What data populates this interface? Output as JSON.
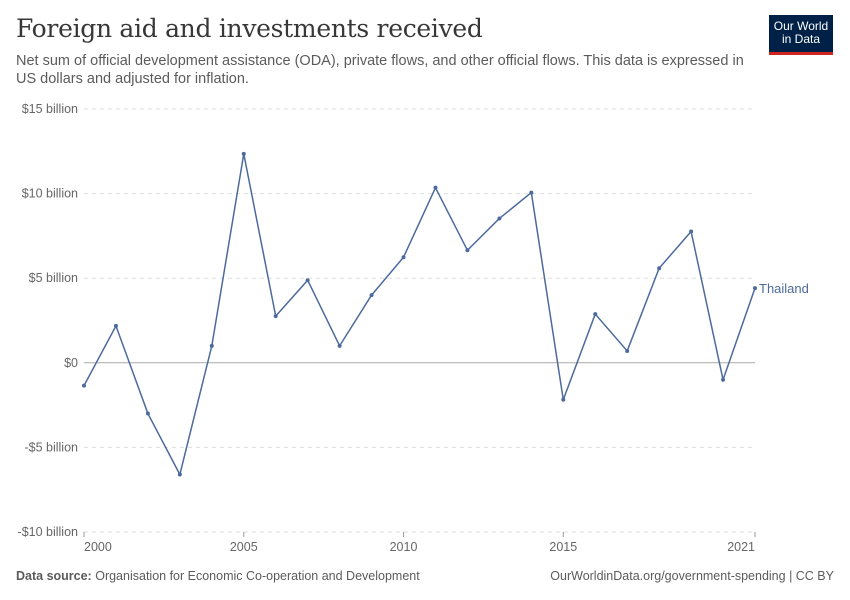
{
  "header": {
    "title": "Foreign aid and investments received",
    "subtitle": "Net sum of official development assistance (ODA), private flows, and other official flows. This data is expressed in US dollars and adjusted for inflation."
  },
  "logo": {
    "text": "Our World in Data",
    "line1": "Our World",
    "line2": "in Data",
    "bg": "#002147",
    "accent": "#ce261e"
  },
  "footer": {
    "source_label": "Data source:",
    "source": "Organisation for Economic Co-operation and Development",
    "url": "OurWorldinData.org/government-spending | CC BY"
  },
  "chart_data": {
    "type": "line",
    "title": "Foreign aid and investments received",
    "ylim": [
      -10,
      15
    ],
    "y_ticks": [
      {
        "v": -10,
        "label": "-$10 billion"
      },
      {
        "v": -5,
        "label": "-$5 billion"
      },
      {
        "v": 0,
        "label": "$0"
      },
      {
        "v": 5,
        "label": "$5 billion"
      },
      {
        "v": 10,
        "label": "$10 billion"
      },
      {
        "v": 15,
        "label": "$15 billion"
      }
    ],
    "x_ticks": [
      2000,
      2005,
      2010,
      2015,
      2021
    ],
    "xlim": [
      2000,
      2021
    ],
    "grid": "horizontal dashed",
    "series": [
      {
        "name": "Thailand",
        "color": "#4c6a9c",
        "x": [
          2000,
          2001,
          2002,
          2003,
          2004,
          2005,
          2006,
          2007,
          2008,
          2009,
          2010,
          2011,
          2012,
          2013,
          2014,
          2015,
          2016,
          2017,
          2018,
          2019,
          2020,
          2021
        ],
        "values": [
          -1.35,
          2.18,
          -3.0,
          -6.6,
          1.0,
          12.35,
          2.76,
          4.88,
          1.0,
          4.0,
          6.24,
          10.35,
          6.65,
          8.53,
          10.06,
          -2.18,
          2.88,
          0.7,
          5.59,
          7.76,
          -1.0,
          4.41
        ]
      }
    ]
  }
}
